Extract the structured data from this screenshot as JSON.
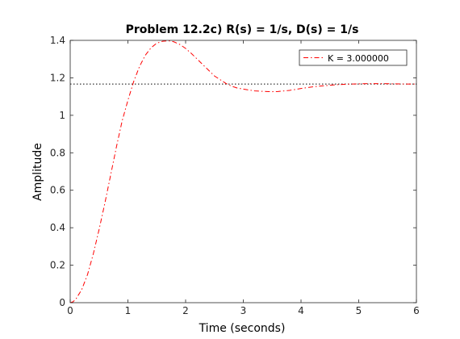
{
  "chart_data": {
    "type": "line",
    "title": "Problem 12.2c) R(s) = 1/s, D(s) = 1/s",
    "xlabel": "Time (seconds)",
    "ylabel": "Amplitude",
    "xlim": [
      0,
      6
    ],
    "ylim": [
      0,
      1.4
    ],
    "xticks": [
      0,
      1,
      2,
      3,
      4,
      5,
      6
    ],
    "yticks": [
      0,
      0.2,
      0.4,
      0.6,
      0.8,
      1,
      1.2,
      1.4
    ],
    "grid": false,
    "legend_position": "top-right",
    "reference_line": {
      "y": 1.167,
      "style": "dotted",
      "color": "#000000"
    },
    "series": [
      {
        "name": "K = 3.000000",
        "color": "#ff0000",
        "style": "dash-dot",
        "x": [
          0,
          0.05,
          0.1,
          0.2,
          0.3,
          0.4,
          0.5,
          0.6,
          0.7,
          0.8,
          0.9,
          1.0,
          1.1,
          1.2,
          1.3,
          1.4,
          1.5,
          1.6,
          1.7,
          1.8,
          1.9,
          2.0,
          2.1,
          2.2,
          2.3,
          2.4,
          2.5,
          2.6,
          2.7,
          2.8,
          2.9,
          3.0,
          3.2,
          3.4,
          3.5,
          3.6,
          3.8,
          4.0,
          4.2,
          4.4,
          4.6,
          4.8,
          5.0,
          5.2,
          5.4,
          5.6,
          5.8,
          6.0
        ],
        "y": [
          0,
          0.005,
          0.02,
          0.07,
          0.15,
          0.26,
          0.39,
          0.53,
          0.68,
          0.83,
          0.97,
          1.08,
          1.18,
          1.26,
          1.32,
          1.36,
          1.385,
          1.395,
          1.398,
          1.392,
          1.378,
          1.357,
          1.33,
          1.3,
          1.27,
          1.24,
          1.21,
          1.19,
          1.17,
          1.155,
          1.145,
          1.14,
          1.13,
          1.127,
          1.126,
          1.127,
          1.133,
          1.143,
          1.152,
          1.158,
          1.163,
          1.166,
          1.168,
          1.169,
          1.169,
          1.168,
          1.167,
          1.167
        ]
      }
    ]
  }
}
